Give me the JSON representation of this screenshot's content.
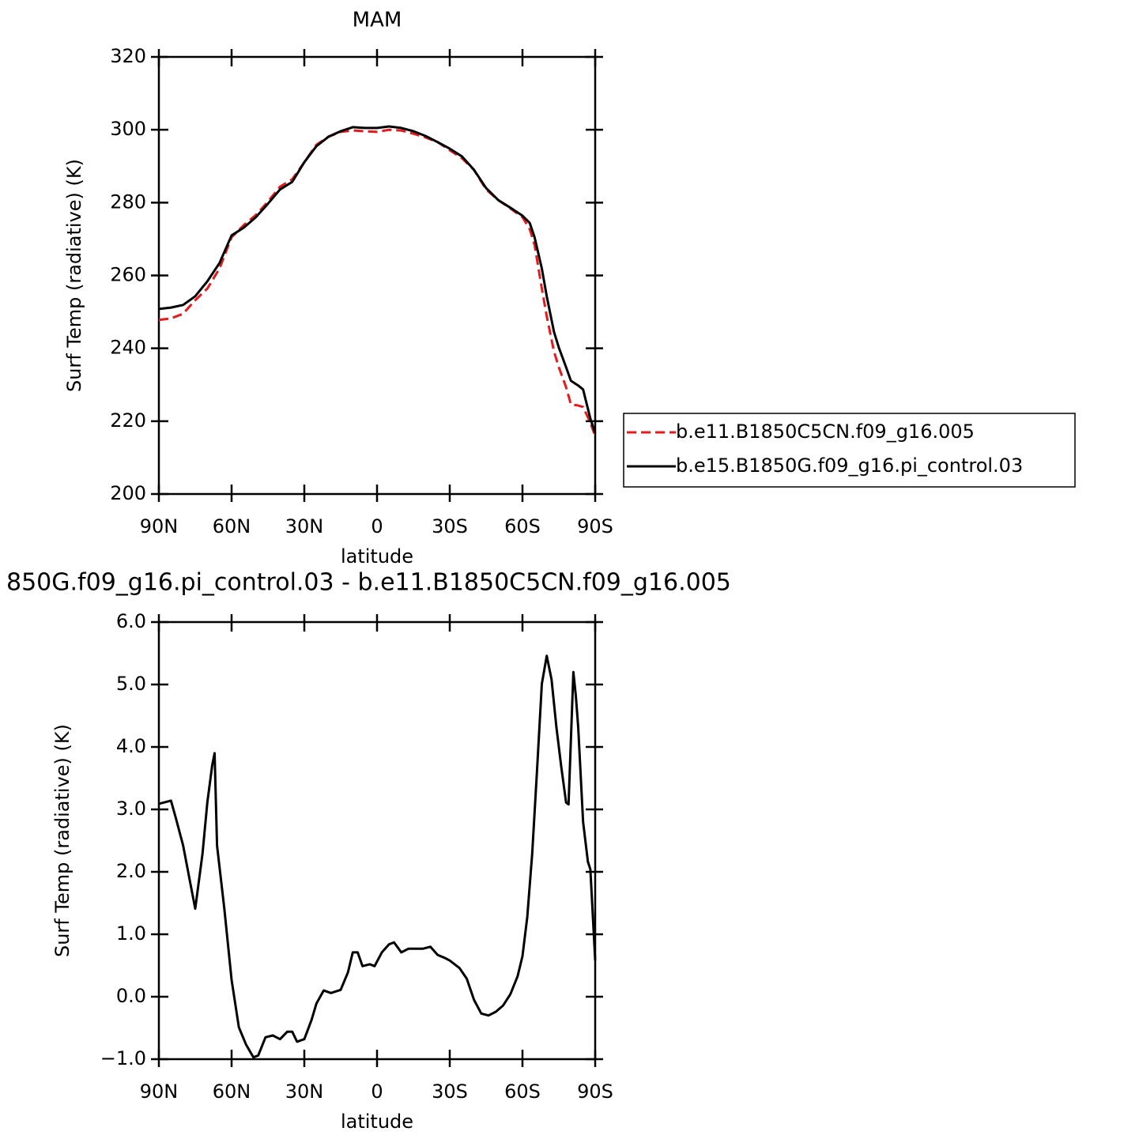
{
  "chart_data": [
    {
      "type": "line",
      "title": "MAM",
      "xlabel": "latitude",
      "ylabel": "Surf Temp (radiative) (K)",
      "x": [
        90,
        85,
        80,
        75,
        70,
        65,
        60,
        55,
        50,
        45,
        40,
        35,
        30,
        25,
        20,
        15,
        10,
        5,
        0,
        -5,
        -10,
        -15,
        -20,
        -25,
        -30,
        -35,
        -40,
        -45,
        -50,
        -55,
        -60,
        -63,
        -65,
        -68,
        -70,
        -73,
        -75,
        -78,
        -80,
        -83,
        -85,
        -88,
        -90
      ],
      "series": [
        {
          "name": "b.e11.B1850C5CN.f09_g16.005",
          "color": "#e41a1c",
          "line_style": "dashed",
          "values": [
            247.8,
            248.2,
            249.5,
            253.2,
            256.4,
            261.9,
            270.5,
            273.8,
            276.6,
            280.3,
            284.4,
            286.4,
            291.1,
            295.9,
            298.1,
            299.4,
            299.8,
            299.6,
            299.4,
            300,
            299.8,
            298.9,
            297.9,
            296.6,
            294.4,
            292.2,
            289,
            283.6,
            280.7,
            278.4,
            276,
            272.7,
            268.4,
            256.4,
            248.8,
            239.1,
            234.8,
            229.3,
            224.6,
            224.3,
            223.9,
            219.6,
            215.9
          ]
        },
        {
          "name": "b.e15.B1850G.f09_g16.pi_control.03",
          "color": "#000000",
          "line_style": "solid",
          "values": [
            250.8,
            251.2,
            251.9,
            254.3,
            258.4,
            263.4,
            271,
            273.1,
            276,
            279.7,
            283.6,
            285.7,
            291.1,
            295.5,
            298.1,
            299.6,
            300.7,
            300.5,
            300.5,
            300.9,
            300.5,
            299.6,
            298.3,
            296.6,
            294.8,
            292.7,
            289,
            284,
            280.7,
            278.6,
            276.4,
            274.4,
            270.5,
            261.9,
            254.3,
            244.5,
            240.2,
            234.8,
            231.1,
            229.8,
            228.7,
            220.7,
            216.7
          ]
        }
      ],
      "xlim": [
        90,
        -90
      ],
      "xticks": [
        {
          "value": 90,
          "label": "90N"
        },
        {
          "value": 60,
          "label": "60N"
        },
        {
          "value": 30,
          "label": "30N"
        },
        0,
        {
          "value": -30,
          "label": "30S"
        },
        {
          "value": -60,
          "label": "60S"
        },
        {
          "value": -90,
          "label": "90S"
        }
      ],
      "ylim": [
        200,
        320
      ],
      "yticks": [
        200,
        220,
        240,
        260,
        280,
        300,
        320
      ],
      "legend": "right"
    },
    {
      "type": "line",
      "title": "850G.f09_g16.pi_control.03 - b.e11.B1850C5CN.f09_g16.005",
      "xlabel": "latitude",
      "ylabel": "Surf Temp (radiative) (K)",
      "x": [
        90,
        85,
        83,
        80,
        77,
        75,
        72,
        70,
        68,
        67,
        66,
        63,
        60,
        57,
        54,
        51,
        49,
        46,
        43,
        40,
        37,
        35,
        33,
        30,
        27,
        25,
        22,
        19,
        15,
        12,
        10,
        8,
        6,
        3,
        1,
        -2,
        -5,
        -7,
        -10,
        -13,
        -16,
        -19,
        -22,
        -25,
        -28,
        -30,
        -34,
        -37,
        -40,
        -43,
        -46,
        -49,
        -52,
        -55,
        -58,
        -60,
        -62,
        -64,
        -66,
        -68,
        -70,
        -72,
        -74,
        -76,
        -78,
        -79,
        -81,
        -82,
        -83,
        -85,
        -87,
        -88,
        -90
      ],
      "color": "#000000",
      "values": [
        3.09,
        3.14,
        2.86,
        2.42,
        1.81,
        1.41,
        2.29,
        3.11,
        3.71,
        3.9,
        2.42,
        1.41,
        0.27,
        -0.49,
        -0.77,
        -0.97,
        -0.94,
        -0.65,
        -0.62,
        -0.68,
        -0.56,
        -0.56,
        -0.72,
        -0.68,
        -0.37,
        -0.11,
        0.1,
        0.06,
        0.11,
        0.39,
        0.71,
        0.71,
        0.49,
        0.52,
        0.49,
        0.71,
        0.84,
        0.87,
        0.71,
        0.77,
        0.77,
        0.77,
        0.8,
        0.67,
        0.62,
        0.58,
        0.46,
        0.29,
        -0.05,
        -0.27,
        -0.3,
        -0.24,
        -0.14,
        0.04,
        0.33,
        0.65,
        1.28,
        2.29,
        3.62,
        5.01,
        5.46,
        5.08,
        4.32,
        3.68,
        3.11,
        3.08,
        5.2,
        4.82,
        4.32,
        2.8,
        2.16,
        2.04,
        0.58
      ],
      "xlim": [
        90,
        -90
      ],
      "xticks": [
        {
          "value": 90,
          "label": "90N"
        },
        {
          "value": 60,
          "label": "60N"
        },
        {
          "value": 30,
          "label": "30N"
        },
        0,
        {
          "value": -30,
          "label": "30S"
        },
        {
          "value": -60,
          "label": "60S"
        },
        {
          "value": -90,
          "label": "90S"
        }
      ],
      "ylim": [
        -1,
        6
      ],
      "yticks": [
        {
          "value": -1,
          "label": "−1.0"
        },
        {
          "value": 0,
          "label": "0.0"
        },
        {
          "value": 1,
          "label": "1.0"
        },
        {
          "value": 2,
          "label": "2.0"
        },
        {
          "value": 3,
          "label": "3.0"
        },
        {
          "value": 4,
          "label": "4.0"
        },
        {
          "value": 5,
          "label": "5.0"
        },
        {
          "value": 6,
          "label": "6.0"
        }
      ]
    }
  ]
}
